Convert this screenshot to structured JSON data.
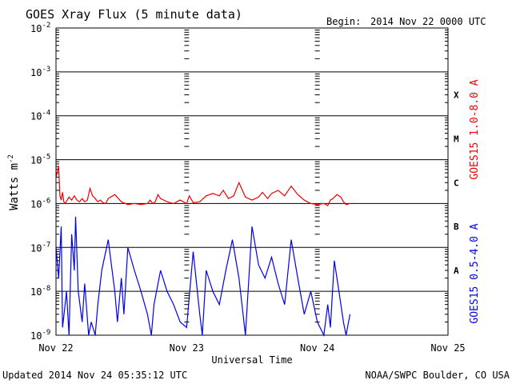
{
  "header": {
    "title": "GOES Xray Flux (5 minute data)",
    "begin_label": "Begin:",
    "begin_value": "2014 Nov 22 0000 UTC"
  },
  "footer": {
    "updated": "Updated 2014 Nov 24 05:35:12 UTC",
    "credit": "NOAA/SWPC Boulder, CO USA"
  },
  "colors": {
    "long": "#ee0000",
    "short": "#0000ee",
    "axis": "#000000"
  },
  "chart_data": {
    "type": "line",
    "ylabel": "Watts m",
    "ylabel_sup": "-2",
    "xlabel": "Universal Time",
    "yscale": "log",
    "ylim": [
      1e-09,
      0.01
    ],
    "xlim_days": [
      0,
      3
    ],
    "x_ticks": [
      "Nov 22",
      "Nov 23",
      "Nov 24",
      "Nov 25"
    ],
    "y_ticks": [
      {
        "base": "10",
        "exp": "-2",
        "value": 0.01
      },
      {
        "base": "10",
        "exp": "-3",
        "value": 0.001
      },
      {
        "base": "10",
        "exp": "-4",
        "value": 0.0001
      },
      {
        "base": "10",
        "exp": "-5",
        "value": 1e-05
      },
      {
        "base": "10",
        "exp": "-6",
        "value": 1e-06
      },
      {
        "base": "10",
        "exp": "-7",
        "value": 1e-07
      },
      {
        "base": "10",
        "exp": "-8",
        "value": 1e-08
      },
      {
        "base": "10",
        "exp": "-9",
        "value": 1e-09
      }
    ],
    "flare_classes": [
      {
        "label": "X",
        "value": 0.0003
      },
      {
        "label": "M",
        "value": 3e-05
      },
      {
        "label": "C",
        "value": 3e-06
      },
      {
        "label": "B",
        "value": 3e-07
      },
      {
        "label": "A",
        "value": 3e-08
      }
    ],
    "series": [
      {
        "name": "GOES15 1.0-8.0 A",
        "color": "#ee0000",
        "x": [
          0.0,
          0.02,
          0.03,
          0.04,
          0.05,
          0.06,
          0.07,
          0.1,
          0.12,
          0.14,
          0.16,
          0.18,
          0.2,
          0.22,
          0.24,
          0.26,
          0.28,
          0.3,
          0.32,
          0.34,
          0.36,
          0.38,
          0.4,
          0.45,
          0.5,
          0.55,
          0.6,
          0.65,
          0.7,
          0.72,
          0.74,
          0.76,
          0.78,
          0.8,
          0.85,
          0.9,
          0.95,
          1.0,
          1.02,
          1.05,
          1.1,
          1.15,
          1.2,
          1.25,
          1.28,
          1.32,
          1.36,
          1.4,
          1.45,
          1.5,
          1.55,
          1.58,
          1.62,
          1.65,
          1.7,
          1.75,
          1.8,
          1.85,
          1.9,
          1.95,
          2.0,
          2.05,
          2.08,
          2.1,
          2.12,
          2.15,
          2.18,
          2.2,
          2.22,
          2.25
        ],
        "y": [
          4e-06,
          7e-06,
          1.5e-06,
          1.2e-06,
          1.8e-06,
          1.1e-06,
          1e-06,
          1.4e-06,
          1.2e-06,
          1.5e-06,
          1.2e-06,
          1.1e-06,
          1.3e-06,
          1.1e-06,
          1.2e-06,
          2.2e-06,
          1.5e-06,
          1.3e-06,
          1.1e-06,
          1.2e-06,
          1.05e-06,
          1e-06,
          1.3e-06,
          1.6e-06,
          1.1e-06,
          9.5e-07,
          1e-06,
          9.5e-07,
          1e-06,
          1.2e-06,
          1e-06,
          1.1e-06,
          1.6e-06,
          1.3e-06,
          1.1e-06,
          1e-06,
          1.2e-06,
          1e-06,
          1.5e-06,
          1.05e-06,
          1.1e-06,
          1.5e-06,
          1.7e-06,
          1.5e-06,
          2e-06,
          1.3e-06,
          1.5e-06,
          3e-06,
          1.4e-06,
          1.2e-06,
          1.4e-06,
          1.8e-06,
          1.3e-06,
          1.7e-06,
          2e-06,
          1.5e-06,
          2.5e-06,
          1.6e-06,
          1.2e-06,
          1e-06,
          9.5e-07,
          1e-06,
          9e-07,
          1.2e-06,
          1.3e-06,
          1.6e-06,
          1.4e-06,
          1.1e-06,
          9.5e-07,
          1e-06
        ]
      },
      {
        "name": "GOES15 0.5-4.0 A",
        "color": "#0000ee",
        "x": [
          0.0,
          0.02,
          0.04,
          0.05,
          0.07,
          0.08,
          0.1,
          0.12,
          0.14,
          0.15,
          0.17,
          0.2,
          0.22,
          0.25,
          0.27,
          0.3,
          0.32,
          0.35,
          0.4,
          0.42,
          0.45,
          0.47,
          0.5,
          0.52,
          0.55,
          0.6,
          0.65,
          0.7,
          0.73,
          0.75,
          0.8,
          0.85,
          0.9,
          0.95,
          1.0,
          1.05,
          1.1,
          1.12,
          1.15,
          1.2,
          1.25,
          1.3,
          1.35,
          1.4,
          1.45,
          1.5,
          1.55,
          1.6,
          1.65,
          1.7,
          1.75,
          1.8,
          1.85,
          1.9,
          1.95,
          2.0,
          2.05,
          2.08,
          2.1,
          2.13,
          2.15,
          2.18,
          2.2,
          2.22,
          2.25
        ],
        "y": [
          1e-07,
          2e-08,
          3e-07,
          1.5e-09,
          5e-09,
          1e-08,
          1e-09,
          2e-07,
          3e-08,
          5e-07,
          1e-08,
          2e-09,
          1.5e-08,
          1e-09,
          2e-09,
          1e-09,
          5e-09,
          3e-08,
          1.5e-07,
          5e-08,
          1e-08,
          2e-09,
          2e-08,
          3e-09,
          1e-07,
          3e-08,
          1e-08,
          3e-09,
          1e-09,
          5e-09,
          3e-08,
          1e-08,
          5e-09,
          2e-09,
          1.5e-09,
          8e-08,
          3e-09,
          1e-09,
          3e-08,
          1e-08,
          5e-09,
          3e-08,
          1.5e-07,
          2e-08,
          1e-09,
          3e-07,
          4e-08,
          2e-08,
          6e-08,
          1.5e-08,
          5e-09,
          1.5e-07,
          2e-08,
          3e-09,
          1e-08,
          2e-09,
          1e-09,
          5e-09,
          1.5e-09,
          5e-08,
          2e-08,
          5e-09,
          2e-09,
          1e-09,
          3e-09
        ]
      }
    ],
    "grid": "horizontal"
  }
}
